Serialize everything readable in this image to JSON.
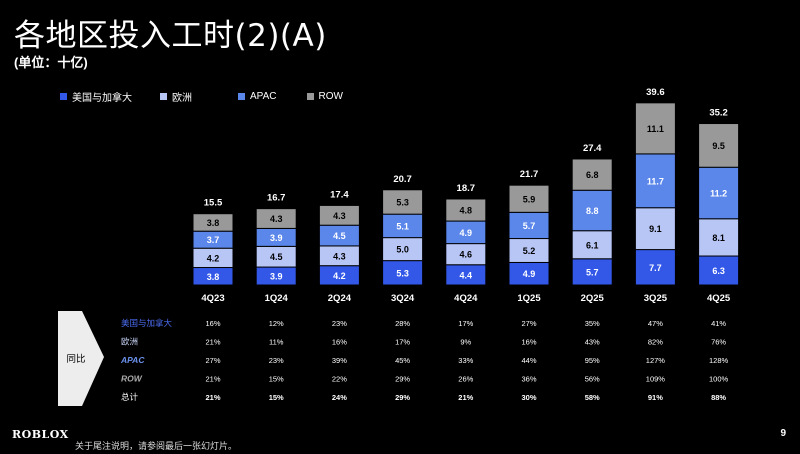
{
  "title": "各地区投入工时(2)(A)",
  "subtitle": "(单位：十亿)",
  "colors": {
    "us": "#3358e8",
    "eu": "#b8c6f6",
    "apac": "#5b86ea",
    "row": "#999999",
    "bg": "#000000"
  },
  "chart_data": {
    "type": "bar",
    "stacked": true,
    "categories": [
      "4Q23",
      "1Q24",
      "2Q24",
      "3Q24",
      "4Q24",
      "1Q25",
      "2Q25",
      "3Q25",
      "4Q25"
    ],
    "series": [
      {
        "name": "美国与加拿大",
        "color": "#3358e8",
        "values": [
          3.8,
          3.9,
          4.2,
          5.3,
          4.4,
          4.9,
          5.7,
          7.7,
          6.3
        ]
      },
      {
        "name": "欧洲",
        "color": "#b8c6f6",
        "values": [
          4.2,
          4.5,
          4.3,
          5.0,
          4.6,
          5.2,
          6.1,
          9.1,
          8.1
        ]
      },
      {
        "name": "APAC",
        "color": "#5b86ea",
        "values": [
          3.7,
          3.9,
          4.5,
          5.1,
          4.9,
          5.7,
          8.8,
          11.7,
          11.2
        ]
      },
      {
        "name": "ROW",
        "color": "#999999",
        "values": [
          3.8,
          4.3,
          4.3,
          5.3,
          4.8,
          5.9,
          6.8,
          11.1,
          9.5
        ]
      }
    ],
    "totals": [
      "15.5",
      "16.7",
      "17.4",
      "20.7",
      "18.7",
      "21.7",
      "27.4",
      "39.6",
      "35.2"
    ],
    "legend": "top-left"
  },
  "yoy": {
    "label": "同比",
    "rows": [
      {
        "name": "美国与加拿大",
        "values": [
          "16%",
          "12%",
          "23%",
          "28%",
          "17%",
          "27%",
          "35%",
          "47%",
          "41%"
        ]
      },
      {
        "name": "欧洲",
        "values": [
          "21%",
          "11%",
          "16%",
          "17%",
          "9%",
          "16%",
          "43%",
          "82%",
          "76%"
        ]
      },
      {
        "name": "APAC",
        "values": [
          "27%",
          "23%",
          "39%",
          "45%",
          "33%",
          "44%",
          "95%",
          "127%",
          "128%"
        ]
      },
      {
        "name": "ROW",
        "values": [
          "21%",
          "15%",
          "22%",
          "29%",
          "26%",
          "36%",
          "56%",
          "109%",
          "100%"
        ]
      },
      {
        "name": "总计",
        "values": [
          "21%",
          "15%",
          "24%",
          "29%",
          "21%",
          "30%",
          "58%",
          "91%",
          "88%"
        ]
      }
    ]
  },
  "footer": {
    "logo": "ROBLOX",
    "footnote": "关于尾注说明，请参阅最后一张幻灯片。",
    "page": "9"
  }
}
